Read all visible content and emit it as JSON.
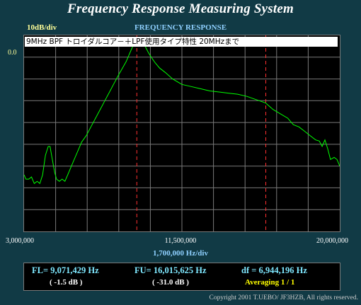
{
  "header": {
    "app_title": "Frequency Response Measuring System",
    "scale": "10dB/div",
    "graph_title": "FREQUENCY RESPONSE",
    "ref_level": "0.0"
  },
  "caption": "9MHz  BPF  トロイダルコア－＋LPF使用タイプ特性  20MHzまで",
  "axis": {
    "x_start": "3,000,000",
    "x_center": "11,500,000",
    "x_end": "20,000,000",
    "x_div": "1,700,000  Hz/div"
  },
  "readout": {
    "fl": "FL= 9,071,429  Hz",
    "fu": "FU= 16,015,625  Hz",
    "df": "df = 6,944,196  Hz",
    "fl_db": "( -1.5 dB )",
    "fu_db": "( -31.0 dB )",
    "averaging": "Averaging   1 / 1"
  },
  "copyright": "Copyright 2001 T.UEBO/ JF3HZB, All rights reserved.",
  "colors": {
    "trace": "#00ff00",
    "marker": "#ff3030",
    "grid": "#7a7a7a",
    "background": "#113a45"
  },
  "chart_data": {
    "type": "line",
    "xlabel": "1,700,000  Hz/div",
    "ylabel": "10dB/div",
    "xlim": [
      3000000,
      20000000
    ],
    "ylim": [
      -90,
      0
    ],
    "grid": true,
    "markers_hz": [
      9071429,
      16015625
    ],
    "series": [
      {
        "x": [
          3000000,
          3100000,
          3250000,
          3400000,
          3550000,
          3700000,
          3850000,
          4000000,
          4150000,
          4300000,
          4400000,
          4500000,
          4650000,
          4750000,
          4900000,
          5050000,
          5200000,
          5350000,
          5500000,
          5700000,
          5900000,
          6100000,
          6350000,
          6600000,
          6850000,
          7100000,
          7350000,
          7600000,
          7850000,
          8100000,
          8300000,
          8500000,
          8650000,
          8800000,
          8950000,
          9050000,
          9150000,
          9250000,
          9350000,
          9450000,
          9550000,
          9700000,
          9850000,
          10050000,
          10300000,
          10600000,
          11000000,
          11500000,
          12000000,
          12500000,
          13000000,
          13500000,
          14000000,
          14500000,
          15000000,
          15500000,
          16000000,
          16400000,
          16800000,
          17200000,
          17500000,
          17800000,
          18100000,
          18400000,
          18700000,
          18900000,
          19050000,
          19200000,
          19350000,
          19500000,
          19700000,
          19850000,
          20000000
        ],
        "y": [
          -64,
          -66,
          -66,
          -65,
          -68,
          -67,
          -68,
          -64,
          -55,
          -51,
          -51,
          -56,
          -63,
          -66,
          -67,
          -66,
          -67,
          -64,
          -61,
          -57,
          -53,
          -49,
          -46,
          -42,
          -38,
          -34,
          -30,
          -26,
          -22,
          -18,
          -15,
          -12,
          -9,
          -6,
          -3,
          -1.5,
          -1,
          -1.2,
          -2,
          -3.5,
          -5.5,
          -8,
          -10,
          -12.5,
          -15,
          -17,
          -20,
          -22.5,
          -23.5,
          -24.5,
          -25.5,
          -26,
          -26.5,
          -27,
          -28,
          -29.5,
          -31,
          -34,
          -36,
          -38,
          -41,
          -42,
          -44,
          -46,
          -48,
          -48.5,
          -51,
          -48,
          -52,
          -57,
          -56,
          -57,
          -60
        ]
      }
    ]
  }
}
